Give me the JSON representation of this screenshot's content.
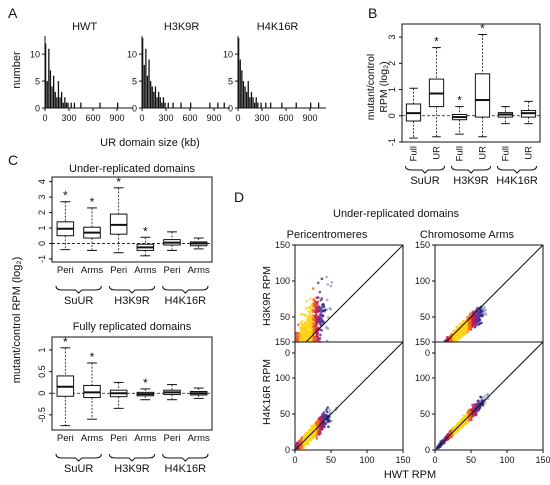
{
  "panels": {
    "A": "A",
    "B": "B",
    "C": "C",
    "D": "D"
  },
  "chart_data": [
    {
      "id": "A",
      "type": "bar",
      "ylabel": "number",
      "xlabel": "UR domain size (kb)",
      "ylim": [
        0,
        13
      ],
      "yticks": [
        0,
        5,
        10
      ],
      "xlim": [
        0,
        1100
      ],
      "xticks": [
        0,
        300,
        600,
        900
      ],
      "bin_width_kb": 20,
      "series": [
        {
          "name": "HWT",
          "bins": [
            {
              "x": 10,
              "y": 12
            },
            {
              "x": 30,
              "y": 5
            },
            {
              "x": 50,
              "y": 11
            },
            {
              "x": 70,
              "y": 7
            },
            {
              "x": 90,
              "y": 4
            },
            {
              "x": 110,
              "y": 6
            },
            {
              "x": 130,
              "y": 3
            },
            {
              "x": 150,
              "y": 2
            },
            {
              "x": 170,
              "y": 5
            },
            {
              "x": 190,
              "y": 2
            },
            {
              "x": 210,
              "y": 3
            },
            {
              "x": 230,
              "y": 1
            },
            {
              "x": 250,
              "y": 2
            },
            {
              "x": 270,
              "y": 1
            },
            {
              "x": 290,
              "y": 1
            },
            {
              "x": 330,
              "y": 1
            },
            {
              "x": 370,
              "y": 1
            },
            {
              "x": 450,
              "y": 1
            },
            {
              "x": 690,
              "y": 1
            },
            {
              "x": 910,
              "y": 1
            }
          ]
        },
        {
          "name": "H3K9R",
          "bins": [
            {
              "x": 10,
              "y": 13
            },
            {
              "x": 30,
              "y": 8
            },
            {
              "x": 50,
              "y": 11
            },
            {
              "x": 70,
              "y": 6
            },
            {
              "x": 90,
              "y": 9
            },
            {
              "x": 110,
              "y": 5
            },
            {
              "x": 130,
              "y": 4
            },
            {
              "x": 150,
              "y": 3
            },
            {
              "x": 170,
              "y": 4
            },
            {
              "x": 190,
              "y": 2
            },
            {
              "x": 210,
              "y": 3
            },
            {
              "x": 230,
              "y": 2
            },
            {
              "x": 250,
              "y": 1
            },
            {
              "x": 270,
              "y": 2
            },
            {
              "x": 290,
              "y": 1
            },
            {
              "x": 330,
              "y": 1
            },
            {
              "x": 390,
              "y": 1
            },
            {
              "x": 490,
              "y": 1
            },
            {
              "x": 610,
              "y": 1
            },
            {
              "x": 850,
              "y": 1
            },
            {
              "x": 950,
              "y": 1
            },
            {
              "x": 1030,
              "y": 1
            }
          ]
        },
        {
          "name": "H4K16R",
          "bins": [
            {
              "x": 10,
              "y": 13
            },
            {
              "x": 30,
              "y": 9
            },
            {
              "x": 50,
              "y": 7
            },
            {
              "x": 70,
              "y": 5
            },
            {
              "x": 90,
              "y": 4
            },
            {
              "x": 110,
              "y": 3
            },
            {
              "x": 130,
              "y": 5
            },
            {
              "x": 150,
              "y": 2
            },
            {
              "x": 170,
              "y": 3
            },
            {
              "x": 190,
              "y": 2
            },
            {
              "x": 210,
              "y": 1
            },
            {
              "x": 230,
              "y": 2
            },
            {
              "x": 250,
              "y": 1
            },
            {
              "x": 290,
              "y": 1
            },
            {
              "x": 350,
              "y": 1
            },
            {
              "x": 410,
              "y": 1
            },
            {
              "x": 550,
              "y": 1
            },
            {
              "x": 730,
              "y": 1
            },
            {
              "x": 910,
              "y": 1
            },
            {
              "x": 1010,
              "y": 1
            }
          ]
        }
      ]
    },
    {
      "id": "B",
      "type": "boxplot",
      "ylabel_line1": "mutant/control",
      "ylabel_line2": "RPM (log₂)",
      "ylim": [
        -1,
        3.5
      ],
      "yticks": [
        -1,
        0,
        1,
        2,
        3
      ],
      "groups": [
        "SuUR",
        "H3K9R",
        "H4K16R"
      ],
      "categories": [
        "Full",
        "UR",
        "Full",
        "UR",
        "Full",
        "UR"
      ],
      "boxes": [
        {
          "group": "SuUR",
          "label": "Full",
          "min": -0.85,
          "q1": -0.2,
          "median": 0.1,
          "q3": 0.45,
          "max": 1.05,
          "star": false
        },
        {
          "group": "SuUR",
          "label": "UR",
          "min": -0.8,
          "q1": 0.35,
          "median": 0.85,
          "q3": 1.4,
          "max": 2.6,
          "star": true
        },
        {
          "group": "H3K9R",
          "label": "Full",
          "min": -0.7,
          "q1": -0.15,
          "median": -0.05,
          "q3": 0.05,
          "max": 0.35,
          "star": true
        },
        {
          "group": "H3K9R",
          "label": "UR",
          "min": -0.8,
          "q1": -0.05,
          "median": 0.6,
          "q3": 1.6,
          "max": 3.1,
          "star": true
        },
        {
          "group": "H4K16R",
          "label": "Full",
          "min": -0.3,
          "q1": -0.05,
          "median": 0.05,
          "q3": 0.12,
          "max": 0.35,
          "star": false
        },
        {
          "group": "H4K16R",
          "label": "UR",
          "min": -0.3,
          "q1": -0.05,
          "median": 0.1,
          "q3": 0.2,
          "max": 0.55,
          "star": false
        }
      ],
      "star_symbol": "*"
    },
    {
      "id": "C",
      "type": "boxplot",
      "shared_ylabel": "mutant/control RPM (log₂)",
      "groups": [
        "SuUR",
        "H3K9R",
        "H4K16R"
      ],
      "categories": [
        "Peri",
        "Arms",
        "Peri",
        "Arms",
        "Peri",
        "Arms"
      ],
      "star_symbol": "*",
      "subplots": [
        {
          "title": "Under-replicated domains",
          "ylim": [
            -1.2,
            4.3
          ],
          "yticks": [
            -1,
            0,
            1,
            2,
            3,
            4
          ],
          "boxes": [
            {
              "label": "Peri",
              "min": -0.4,
              "q1": 0.5,
              "median": 0.95,
              "q3": 1.4,
              "max": 2.7,
              "star": true
            },
            {
              "label": "Arms",
              "min": -0.45,
              "q1": 0.35,
              "median": 0.7,
              "q3": 1.05,
              "max": 2.3,
              "star": true
            },
            {
              "label": "Peri",
              "min": -0.6,
              "q1": 0.6,
              "median": 1.2,
              "q3": 1.9,
              "max": 3.6,
              "star": true
            },
            {
              "label": "Arms",
              "min": -0.8,
              "q1": -0.45,
              "median": -0.25,
              "q3": -0.05,
              "max": 0.4,
              "star": true
            },
            {
              "label": "Peri",
              "min": -0.45,
              "q1": -0.1,
              "median": 0.05,
              "q3": 0.25,
              "max": 0.75,
              "star": false
            },
            {
              "label": "Arms",
              "min": -0.35,
              "q1": -0.15,
              "median": 0.0,
              "q3": 0.1,
              "max": 0.35,
              "star": false
            }
          ]
        },
        {
          "title": "Fully replicated domains",
          "ylim": [
            -0.85,
            1.3
          ],
          "yticks": [
            -0.5,
            0,
            0.5,
            1
          ],
          "ytick_labels": [
            "-0.5",
            "0",
            "0.5",
            "1"
          ],
          "boxes": [
            {
              "label": "Peri",
              "min": -0.75,
              "q1": -0.07,
              "median": 0.15,
              "q3": 0.4,
              "max": 1.05,
              "star": true
            },
            {
              "label": "Arms",
              "min": -0.6,
              "q1": -0.1,
              "median": 0.02,
              "q3": 0.18,
              "max": 0.7,
              "star": true
            },
            {
              "label": "Peri",
              "min": -0.35,
              "q1": -0.08,
              "median": 0.0,
              "q3": 0.07,
              "max": 0.25,
              "star": false
            },
            {
              "label": "Arms",
              "min": -0.15,
              "q1": -0.06,
              "median": -0.02,
              "q3": 0.02,
              "max": 0.1,
              "star": true
            },
            {
              "label": "Peri",
              "min": -0.15,
              "q1": -0.03,
              "median": 0.02,
              "q3": 0.07,
              "max": 0.2,
              "star": false
            },
            {
              "label": "Arms",
              "min": -0.12,
              "q1": -0.04,
              "median": 0.0,
              "q3": 0.04,
              "max": 0.12,
              "star": false
            }
          ]
        }
      ]
    },
    {
      "id": "D",
      "type": "scatter",
      "title": "Under-replicated domains",
      "column_titles": [
        "Pericentromeres",
        "Chromosome Arms"
      ],
      "row_labels": [
        "H3K9R RPM",
        "H4K16R RPM"
      ],
      "xlabel": "HWT RPM",
      "xlim": [
        0,
        150
      ],
      "ylim": [
        0,
        150
      ],
      "xticks": [
        0,
        50,
        100,
        150
      ],
      "yticks": [
        0,
        50,
        100,
        150
      ],
      "diagonal": "y = x",
      "density_colors": [
        "#2a2f8f",
        "#6b2f9a",
        "#c4204f",
        "#f26a1b",
        "#ffd21a"
      ],
      "clouds": [
        {
          "row": "H3K9R",
          "col": "Pericentromeres",
          "center": [
            15,
            30
          ],
          "spread_x": 16,
          "spread_y": 24,
          "slope": 1.3,
          "max_x": 80,
          "max_y": 125
        },
        {
          "row": "H3K9R",
          "col": "Chromosome Arms",
          "center": [
            35,
            28
          ],
          "spread_x": 18,
          "spread_y": 4,
          "slope": 0.85,
          "max_x": 75,
          "max_y": 70
        },
        {
          "row": "H4K16R",
          "col": "Pericentromeres",
          "center": [
            20,
            20
          ],
          "spread_x": 16,
          "spread_y": 5,
          "slope": 1.0,
          "max_x": 78,
          "max_y": 95
        },
        {
          "row": "H4K16R",
          "col": "Chromosome Arms",
          "center": [
            35,
            34
          ],
          "spread_x": 18,
          "spread_y": 2.5,
          "slope": 1.0,
          "max_x": 78,
          "max_y": 78
        }
      ]
    }
  ]
}
